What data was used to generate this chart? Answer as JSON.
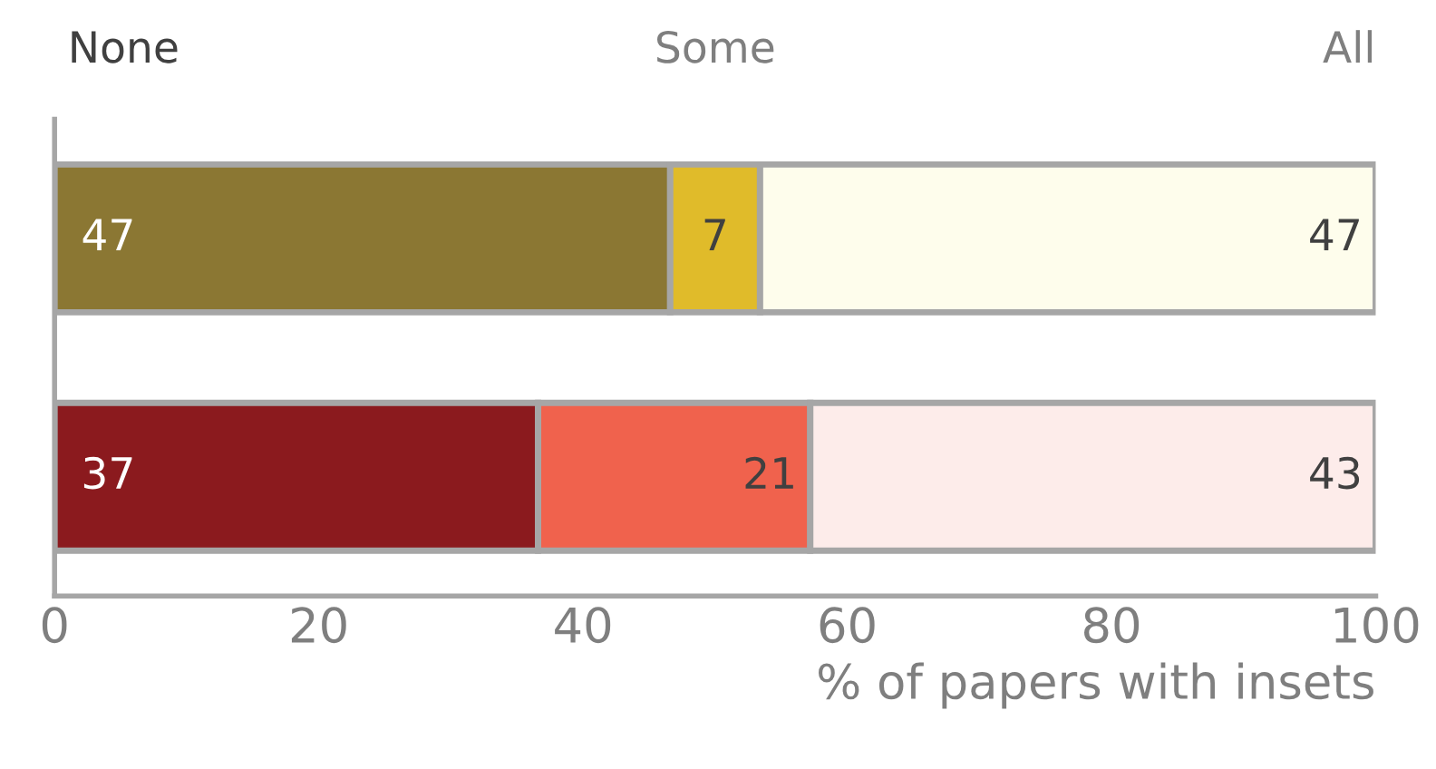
{
  "chart_data": {
    "type": "bar",
    "orientation": "horizontal",
    "stacked": true,
    "xlabel": "% of papers with insets",
    "categories": [
      null,
      null
    ],
    "series": [
      {
        "colors": [
          "#8b7733",
          "#8b1a1e"
        ],
        "values": [
          46.6,
          36.6
        ],
        "value_labels": [
          "47",
          "37"
        ]
      },
      {
        "colors": [
          "#e0bb2a",
          "#f0624d"
        ],
        "values": [
          6.8,
          20.6
        ],
        "value_labels": [
          "7",
          "21"
        ]
      },
      {
        "colors": [
          "#fefdec",
          "#fdecea"
        ],
        "values": [
          46.6,
          42.8
        ],
        "value_labels": [
          "47",
          "43"
        ]
      }
    ],
    "annotations": [
      "None",
      "Some",
      "All"
    ],
    "xlim": [
      0,
      100
    ],
    "xticks": [
      0,
      20,
      40,
      60,
      80,
      100
    ],
    "grid": false,
    "tick_labels": "x"
  }
}
